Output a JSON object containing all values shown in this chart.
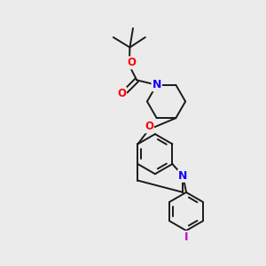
{
  "bg_color": "#ebebeb",
  "bond_color": "#1a1a1a",
  "bond_width": 1.4,
  "atom_colors": {
    "O": "#ff0000",
    "N_pip": "#1400ff",
    "N_ind": "#1400ff",
    "I": "#cc00cc",
    "C": "#1a1a1a"
  },
  "scale": 1.0
}
